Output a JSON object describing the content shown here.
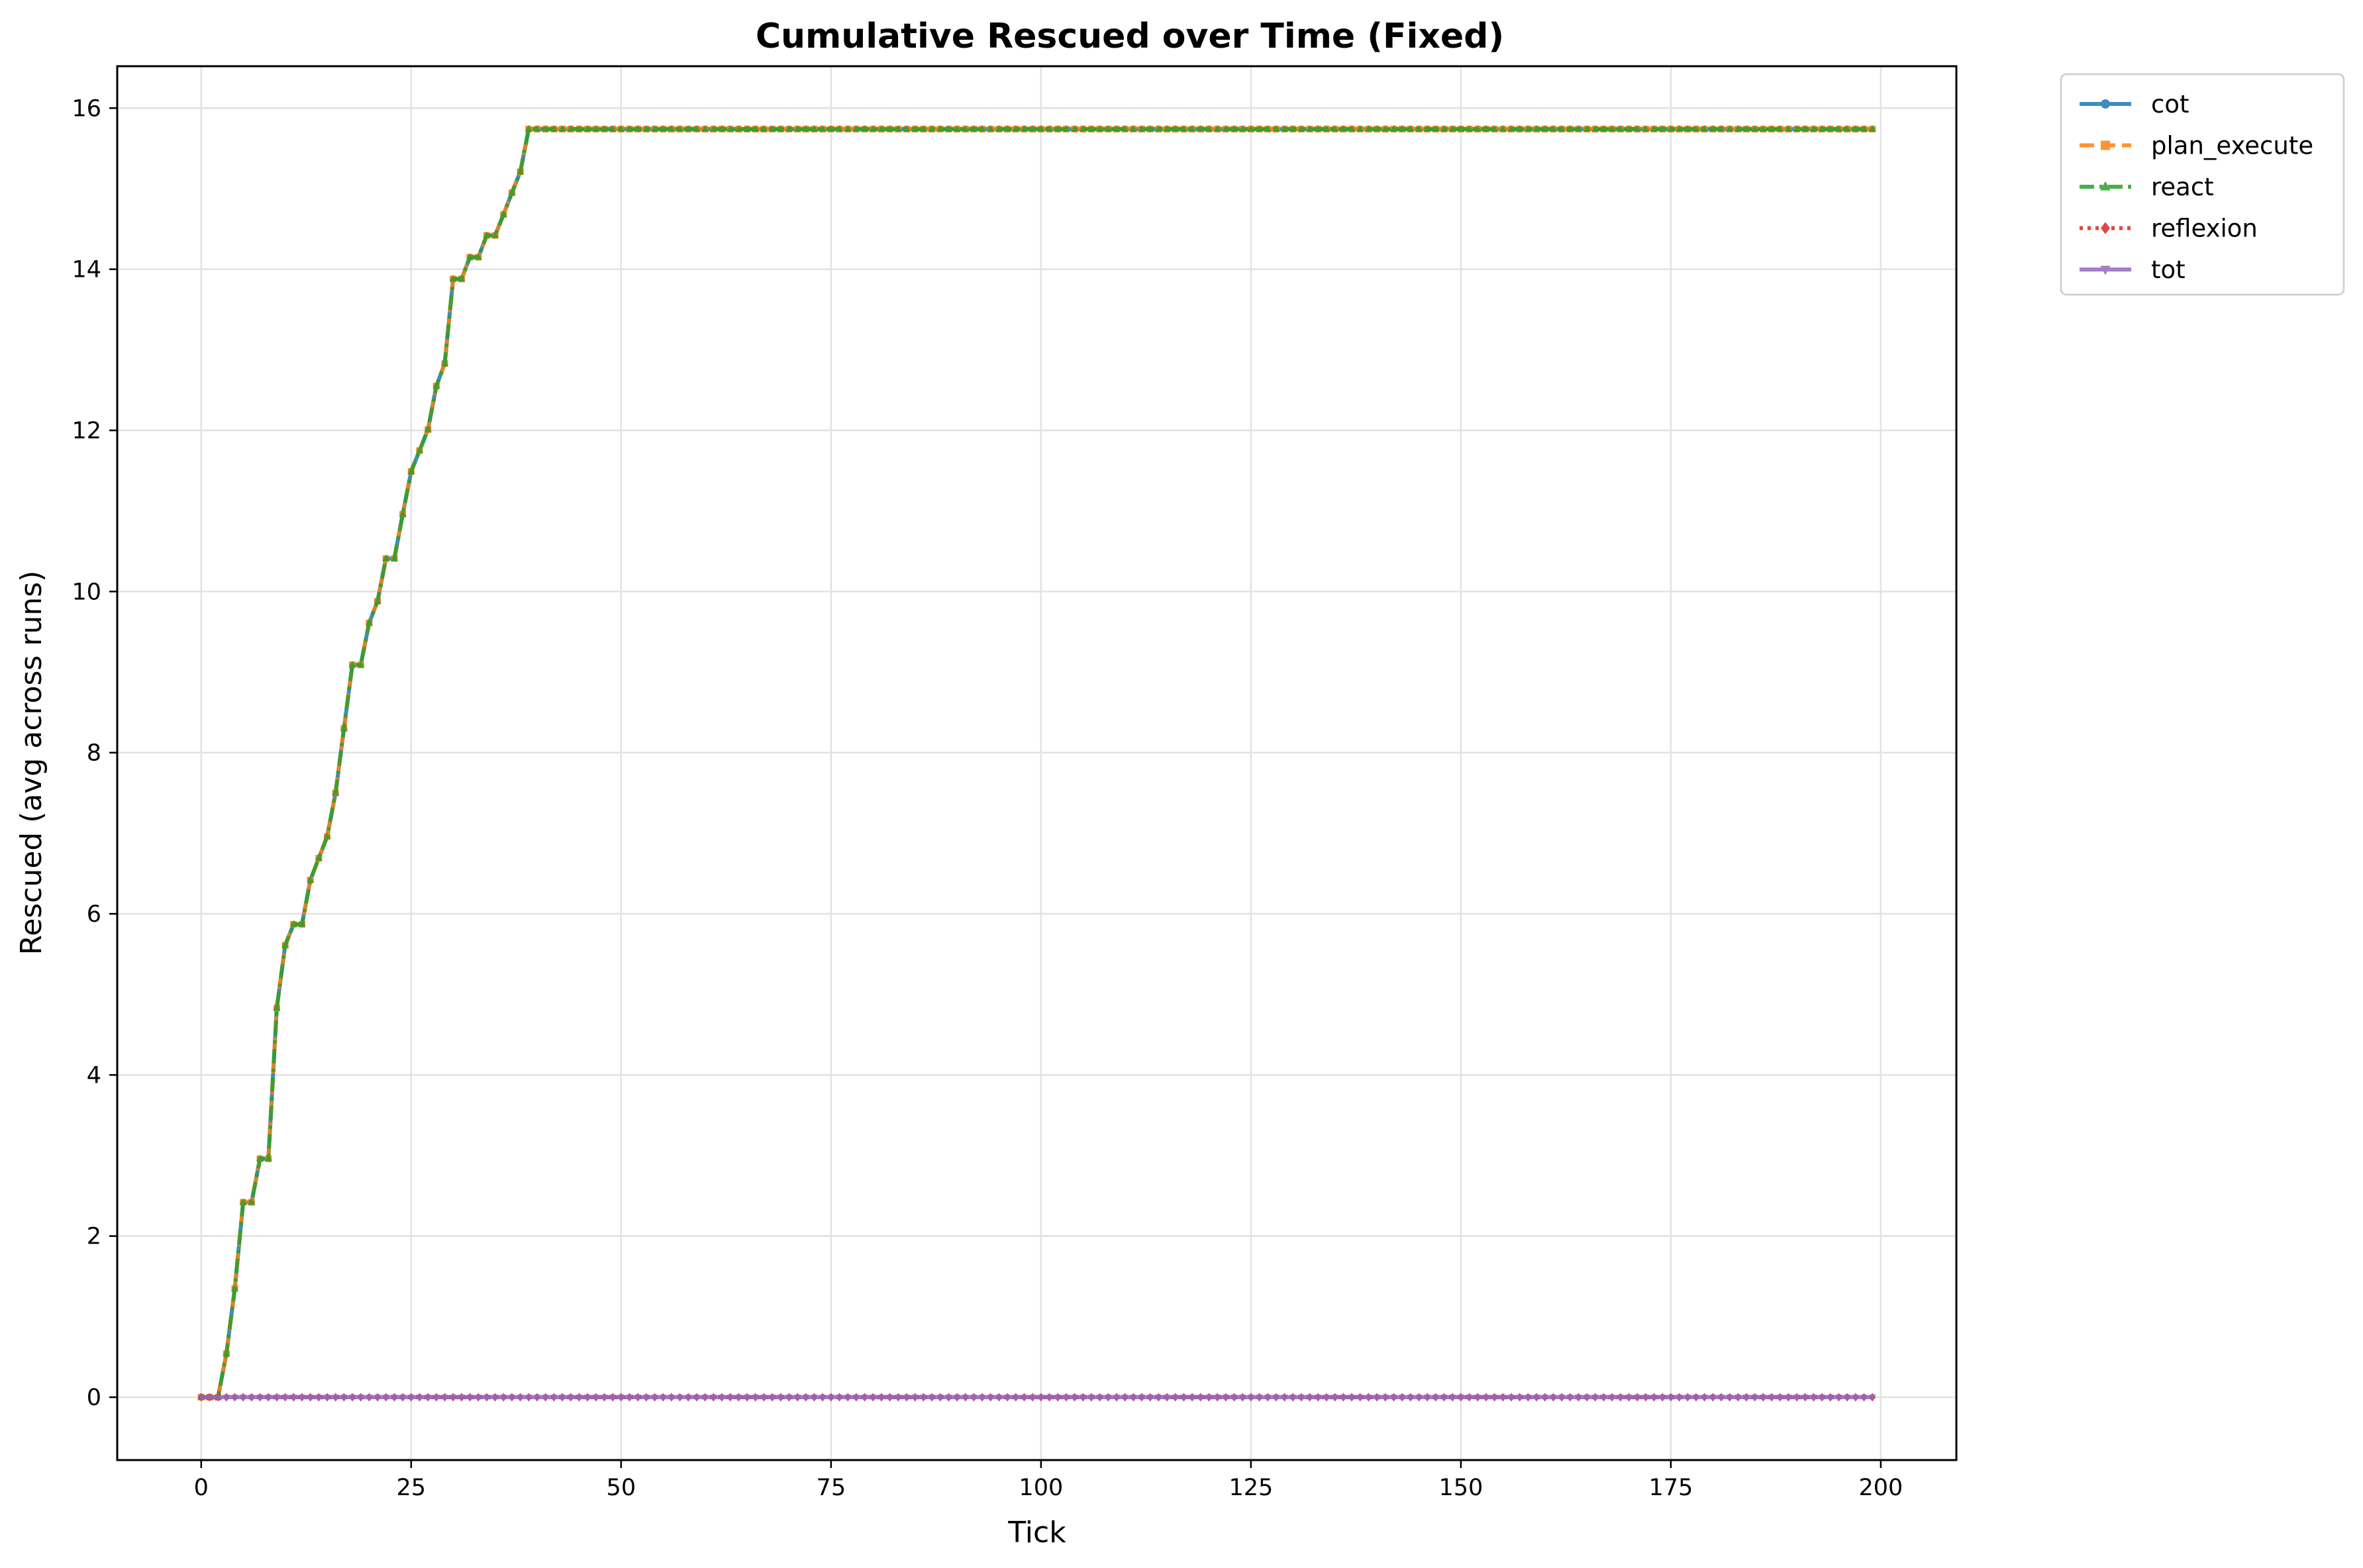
{
  "chart_data": {
    "type": "line",
    "title": "Cumulative Rescued over Time (Fixed)",
    "xlabel": "Tick",
    "ylabel": "Rescued (avg across runs)",
    "xlim": [
      -10,
      209
    ],
    "ylim": [
      -0.78,
      16.52
    ],
    "xticks": [
      0,
      25,
      50,
      75,
      100,
      125,
      150,
      175,
      200
    ],
    "yticks": [
      0,
      2,
      4,
      6,
      8,
      10,
      12,
      14,
      16
    ],
    "grid": true,
    "legend_position": "outside-top-right",
    "x_range": [
      0,
      199
    ],
    "rescue_curve_points": [
      [
        0,
        0
      ],
      [
        2,
        0
      ],
      [
        3,
        0.54
      ],
      [
        4,
        1.35
      ],
      [
        5,
        2.42
      ],
      [
        6,
        2.42
      ],
      [
        7,
        2.96
      ],
      [
        8,
        2.96
      ],
      [
        9,
        4.83
      ],
      [
        10,
        5.61
      ],
      [
        11,
        5.87
      ],
      [
        12,
        5.87
      ],
      [
        13,
        6.42
      ],
      [
        14,
        6.69
      ],
      [
        15,
        6.96
      ],
      [
        16,
        7.5
      ],
      [
        17,
        8.3
      ],
      [
        18,
        9.09
      ],
      [
        19,
        9.09
      ],
      [
        20,
        9.61
      ],
      [
        21,
        9.88
      ],
      [
        22,
        10.41
      ],
      [
        23,
        10.41
      ],
      [
        24,
        10.96
      ],
      [
        25,
        11.49
      ],
      [
        26,
        11.75
      ],
      [
        27,
        12.01
      ],
      [
        28,
        12.55
      ],
      [
        29,
        12.83
      ],
      [
        30,
        13.88
      ],
      [
        31,
        13.88
      ],
      [
        32,
        14.15
      ],
      [
        33,
        14.15
      ],
      [
        34,
        14.42
      ],
      [
        35,
        14.42
      ],
      [
        36,
        14.68
      ],
      [
        37,
        14.95
      ],
      [
        38,
        15.21
      ],
      [
        39,
        15.74
      ],
      [
        199,
        15.74
      ]
    ],
    "series": [
      {
        "name": "cot",
        "color": "#1f77b4",
        "marker": "circle",
        "linestyle": "solid",
        "curve": "rescue"
      },
      {
        "name": "plan_execute",
        "color": "#ff7f0e",
        "marker": "square",
        "linestyle": "dashed",
        "curve": "rescue"
      },
      {
        "name": "react",
        "color": "#2ca02c",
        "marker": "triangle-up",
        "linestyle": "dashdot",
        "curve": "rescue"
      },
      {
        "name": "reflexion",
        "color": "#d62728",
        "marker": "diamond",
        "linestyle": "dotted",
        "curve": "zero"
      },
      {
        "name": "tot",
        "color": "#9467bd",
        "marker": "triangle-down",
        "linestyle": "solid",
        "curve": "zero"
      }
    ]
  }
}
